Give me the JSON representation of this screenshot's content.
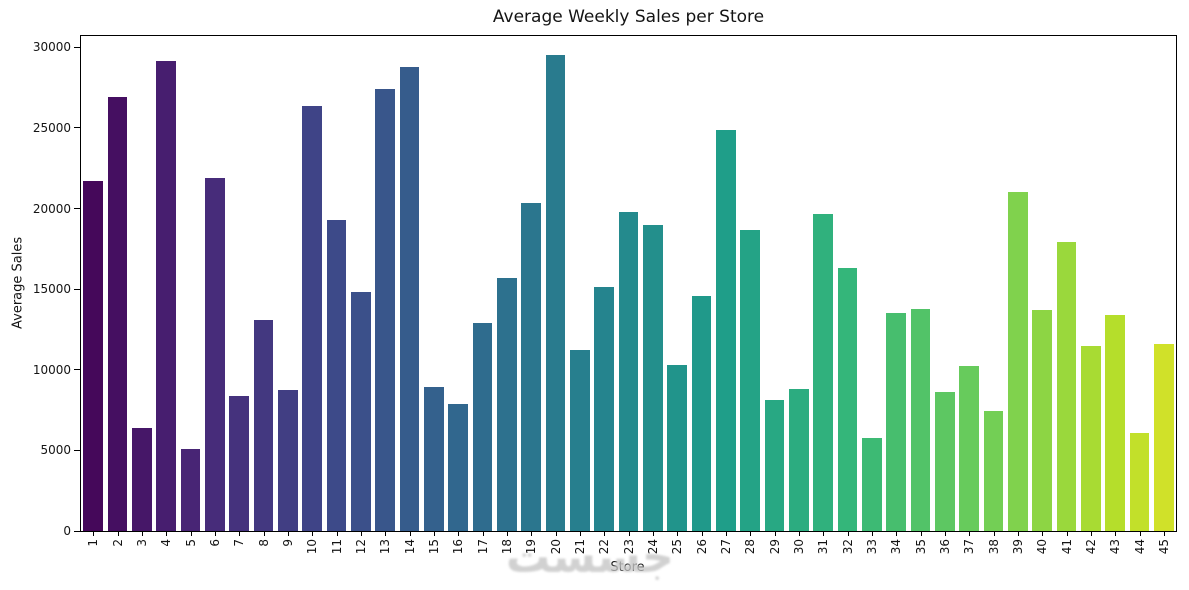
{
  "watermark": {
    "text": "جسست"
  },
  "chart_data": {
    "type": "bar",
    "title": "Average Weekly Sales per Store",
    "xlabel": "Store",
    "ylabel": "Average Sales",
    "categories": [
      "1",
      "2",
      "3",
      "4",
      "5",
      "6",
      "7",
      "8",
      "9",
      "10",
      "11",
      "12",
      "13",
      "14",
      "15",
      "16",
      "17",
      "18",
      "19",
      "20",
      "21",
      "22",
      "23",
      "24",
      "25",
      "26",
      "27",
      "28",
      "29",
      "30",
      "31",
      "32",
      "33",
      "34",
      "35",
      "36",
      "37",
      "38",
      "39",
      "40",
      "41",
      "42",
      "43",
      "44",
      "45"
    ],
    "values": [
      21700,
      26900,
      6400,
      29150,
      5100,
      21900,
      8350,
      13100,
      8750,
      26350,
      19300,
      14850,
      27400,
      28800,
      8950,
      7850,
      12900,
      15700,
      20350,
      29500,
      11250,
      15150,
      19800,
      19000,
      10300,
      14550,
      24850,
      18650,
      8150,
      8800,
      19650,
      16300,
      5750,
      13550,
      13800,
      8600,
      10250,
      7450,
      21000,
      13700,
      17950,
      11450,
      13400,
      6050,
      11600
    ],
    "ylim": [
      0,
      30700
    ],
    "yticks": [
      0,
      5000,
      10000,
      15000,
      20000,
      25000,
      30000
    ],
    "grid": false,
    "legend_position": "none",
    "palette": "viridis",
    "palette_stops": [
      "#440154",
      "#482878",
      "#3e4989",
      "#31688e",
      "#26828e",
      "#1f9e89",
      "#35b779",
      "#6ece58",
      "#b5de2b",
      "#fde725"
    ],
    "palette_range": [
      0.02,
      0.93
    ]
  }
}
